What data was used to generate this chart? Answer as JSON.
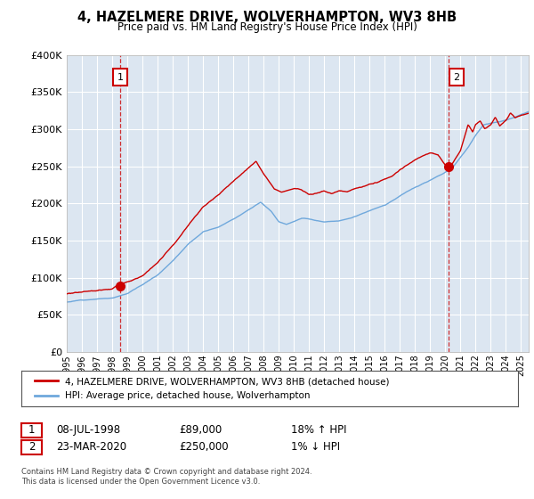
{
  "title": "4, HAZELMERE DRIVE, WOLVERHAMPTON, WV3 8HB",
  "subtitle": "Price paid vs. HM Land Registry's House Price Index (HPI)",
  "legend_line1": "4, HAZELMERE DRIVE, WOLVERHAMPTON, WV3 8HB (detached house)",
  "legend_line2": "HPI: Average price, detached house, Wolverhampton",
  "annotation1_date": "08-JUL-1998",
  "annotation1_price": "£89,000",
  "annotation1_hpi": "18% ↑ HPI",
  "annotation2_date": "23-MAR-2020",
  "annotation2_price": "£250,000",
  "annotation2_hpi": "1% ↓ HPI",
  "footer": "Contains HM Land Registry data © Crown copyright and database right 2024.\nThis data is licensed under the Open Government Licence v3.0.",
  "sale1_year": 1998.52,
  "sale1_price": 89000,
  "sale2_year": 2020.22,
  "sale2_price": 250000,
  "hpi_color": "#6fa8dc",
  "price_color": "#cc0000",
  "plot_bg": "#dce6f1",
  "ylim_min": 0,
  "ylim_max": 400000,
  "ytick_vals": [
    0,
    50000,
    100000,
    150000,
    200000,
    250000,
    300000,
    350000,
    400000
  ],
  "xstart": 1995,
  "xend": 2025.5,
  "xtick_years": [
    1995,
    1996,
    1997,
    1998,
    1999,
    2000,
    2001,
    2002,
    2003,
    2004,
    2005,
    2006,
    2007,
    2008,
    2009,
    2010,
    2011,
    2012,
    2013,
    2014,
    2015,
    2016,
    2017,
    2018,
    2019,
    2020,
    2021,
    2022,
    2023,
    2024,
    2025
  ]
}
